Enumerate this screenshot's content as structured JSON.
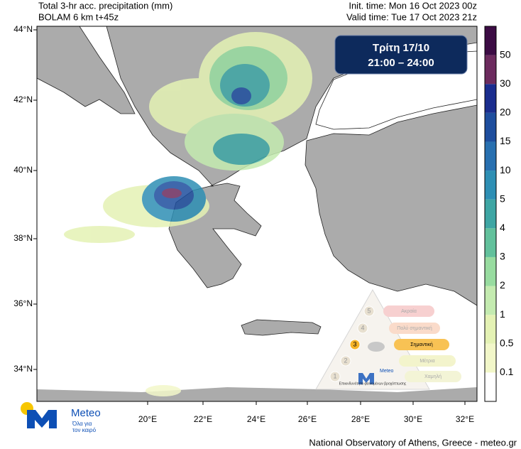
{
  "header": {
    "left": [
      "Total 3-hr acc. precipitation (mm)",
      "BOLAM 6 km t+45z"
    ],
    "right": [
      "Init. time: Mon 16 Oct 2023 00z",
      "Valid time: Tue 17 Oct 2023 21z"
    ]
  },
  "badge": {
    "day": "Τρίτη 17/10",
    "time": "21:00 – 24:00"
  },
  "lat_ticks": [
    "44°N",
    "42°N",
    "40°N",
    "38°N",
    "36°N",
    "34°N"
  ],
  "lon_ticks": [
    "20°E",
    "22°E",
    "24°E",
    "26°E",
    "28°E",
    "30°E",
    "32°E"
  ],
  "colorbar": {
    "levels": [
      0.1,
      0.5,
      1,
      2,
      3,
      4,
      5,
      10,
      15,
      20,
      30,
      50
    ],
    "colors": [
      "#ffffff",
      "#f2f7c9",
      "#e4f2b4",
      "#c4ebb0",
      "#98dca0",
      "#62c19c",
      "#3ea6a4",
      "#2e8fb4",
      "#2870b0",
      "#1e4e9e",
      "#1a2d8e",
      "#6c2b5e",
      "#3c0c44"
    ]
  },
  "warning": {
    "levels": [
      {
        "number": 5,
        "label": "Ακραία"
      },
      {
        "number": 4,
        "label": "Πολύ σημαντική"
      },
      {
        "number": 3,
        "label": "Σημαντική"
      },
      {
        "number": 2,
        "label": "Μέτρια"
      },
      {
        "number": 1,
        "label": "Χαμηλή"
      }
    ],
    "brand": "Meteo",
    "caption": "Επικινδυνότητα φαινομένων βροχόπτωσης"
  },
  "logo": {
    "name": "Meteo",
    "tagline": [
      "Όλα για",
      "τον καιρό"
    ]
  },
  "footer": "National Observatory of Athens, Greece - meteo.gr"
}
